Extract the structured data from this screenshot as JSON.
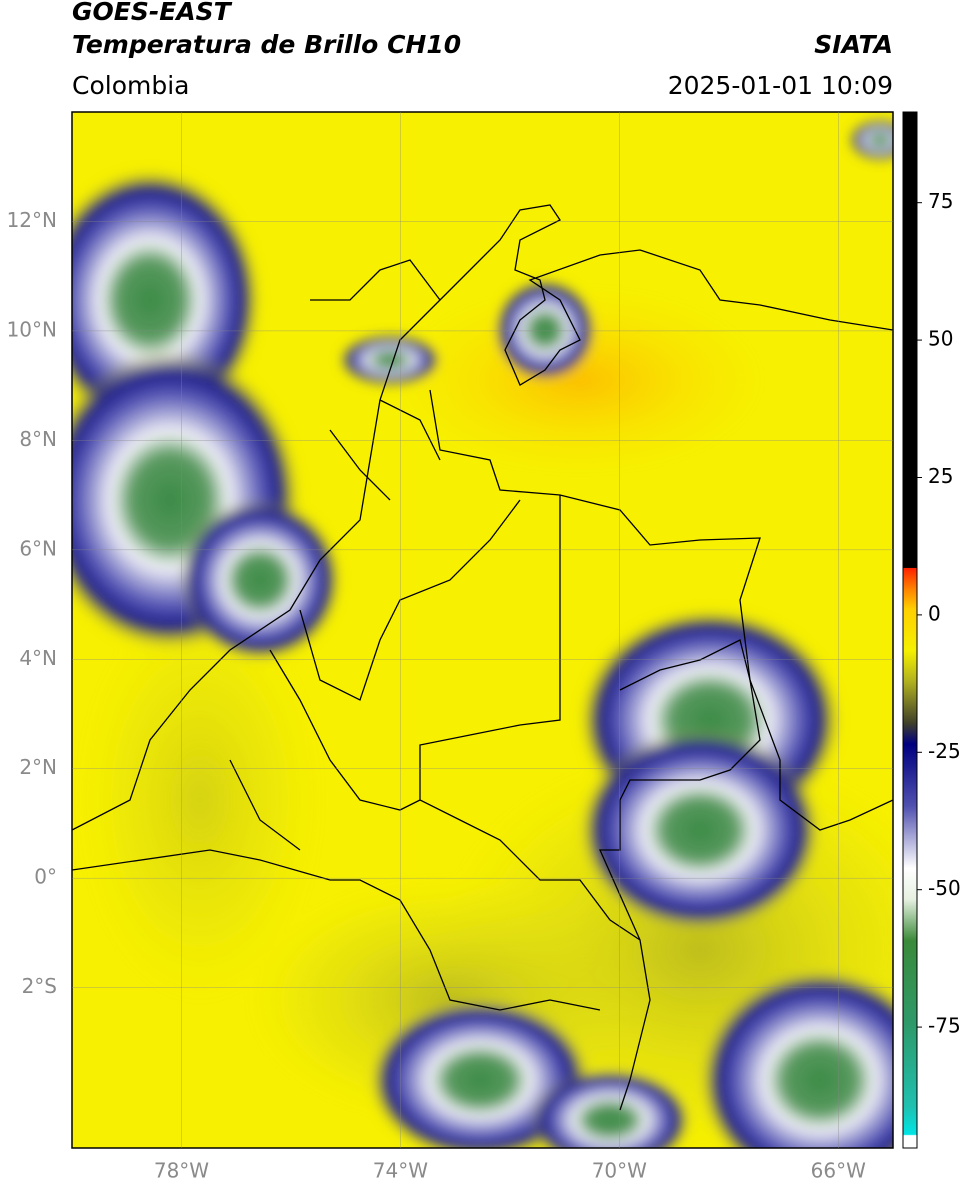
{
  "header": {
    "title": "GOES-EAST",
    "subtitle": "Temperatura de Brillo CH10",
    "source": "SIATA",
    "region": "Colombia",
    "datetime": "2025-01-01 10:09"
  },
  "map": {
    "xlim": [
      -80,
      -65
    ],
    "ylim": [
      -4.93,
      14
    ],
    "xticks": [
      {
        "value": -78,
        "label": "78°W"
      },
      {
        "value": -74,
        "label": "74°W"
      },
      {
        "value": -70,
        "label": "70°W"
      },
      {
        "value": -66,
        "label": "66°W"
      }
    ],
    "yticks": [
      {
        "value": -2,
        "label": "2°S"
      },
      {
        "value": 0,
        "label": "0°"
      },
      {
        "value": 2,
        "label": "2°N"
      },
      {
        "value": 4,
        "label": "4°N"
      },
      {
        "value": 6,
        "label": "6°N"
      },
      {
        "value": 8,
        "label": "8°N"
      },
      {
        "value": 10,
        "label": "10°N"
      },
      {
        "value": 12,
        "label": "12°N"
      }
    ]
  },
  "colorbar": {
    "lim": [
      -97,
      91.5
    ],
    "ticks": [
      -75,
      -50,
      -25,
      0,
      25,
      50,
      75
    ]
  }
}
